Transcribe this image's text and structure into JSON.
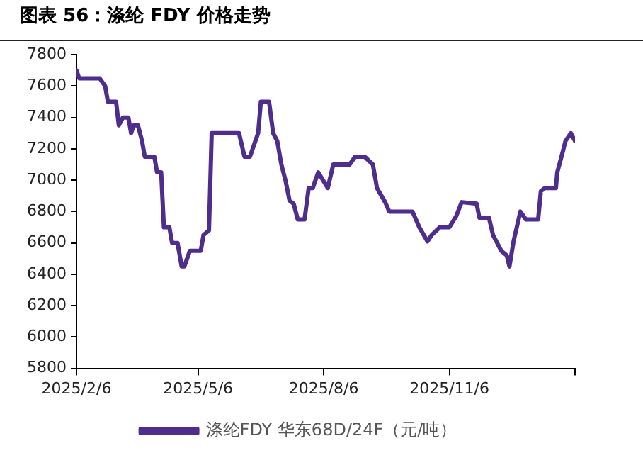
{
  "chart_data": {
    "type": "line",
    "title": "图表 56：涤纶 FDY 价格走势",
    "x": [
      "2025-02-06",
      "2025-02-08",
      "2025-02-23",
      "2025-02-27",
      "2025-03-01",
      "2025-03-07",
      "2025-03-09",
      "2025-03-12",
      "2025-03-16",
      "2025-03-18",
      "2025-03-20",
      "2025-03-23",
      "2025-03-26",
      "2025-03-28",
      "2025-04-04",
      "2025-04-06",
      "2025-04-09",
      "2025-04-11",
      "2025-04-15",
      "2025-04-17",
      "2025-04-21",
      "2025-04-24",
      "2025-04-26",
      "2025-04-30",
      "2025-05-08",
      "2025-05-10",
      "2025-05-14",
      "2025-05-16",
      "2025-06-05",
      "2025-06-09",
      "2025-06-13",
      "2025-06-17",
      "2025-06-19",
      "2025-06-21",
      "2025-06-27",
      "2025-06-30",
      "2025-07-03",
      "2025-07-06",
      "2025-07-09",
      "2025-07-12",
      "2025-07-15",
      "2025-07-18",
      "2025-07-23",
      "2025-07-26",
      "2025-07-29",
      "2025-08-02",
      "2025-08-09",
      "2025-08-13",
      "2025-08-25",
      "2025-08-29",
      "2025-09-05",
      "2025-09-11",
      "2025-09-14",
      "2025-09-20",
      "2025-09-23",
      "2025-10-10",
      "2025-10-15",
      "2025-10-21",
      "2025-10-24",
      "2025-10-30",
      "2025-11-06",
      "2025-11-11",
      "2025-11-15",
      "2025-11-26",
      "2025-11-28",
      "2025-12-05",
      "2025-12-08",
      "2025-12-14",
      "2025-12-18",
      "2025-12-20",
      "2025-12-23",
      "2025-12-28",
      "2026-01-01",
      "2026-01-10",
      "2026-01-12",
      "2026-01-15",
      "2026-01-23",
      "2026-01-24",
      "2026-01-28",
      "2026-01-30",
      "2026-02-03",
      "2026-02-06"
    ],
    "series": [
      {
        "name": "涤纶FDY 华东68D/24F（元/吨）",
        "color": "#4f2d8c",
        "values": [
          7700,
          7650,
          7650,
          7600,
          7500,
          7500,
          7350,
          7400,
          7400,
          7300,
          7350,
          7350,
          7250,
          7150,
          7150,
          7050,
          7050,
          6700,
          6700,
          6600,
          6600,
          6450,
          6450,
          6550,
          6550,
          6650,
          6680,
          7300,
          7300,
          7150,
          7150,
          7250,
          7300,
          7500,
          7500,
          7300,
          7250,
          7100,
          7000,
          6870,
          6850,
          6750,
          6750,
          6950,
          6950,
          7050,
          6950,
          7100,
          7100,
          7150,
          7150,
          7100,
          6950,
          6860,
          6800,
          6800,
          6700,
          6610,
          6650,
          6700,
          6700,
          6770,
          6860,
          6850,
          6760,
          6760,
          6650,
          6550,
          6520,
          6450,
          6610,
          6800,
          6750,
          6750,
          6930,
          6950,
          6950,
          7050,
          7180,
          7250,
          7300,
          7250
        ]
      }
    ],
    "xlim": [
      "2025-02-06",
      "2026-02-06"
    ],
    "xticks": [
      {
        "value": "2025-02-06",
        "label": "2025/2/6"
      },
      {
        "value": "2025-05-06",
        "label": "2025/5/6"
      },
      {
        "value": "2025-08-06",
        "label": "2025/8/6"
      },
      {
        "value": "2025-11-06",
        "label": "2025/11/6"
      },
      {
        "value": "2026-02-06",
        "label": null
      }
    ],
    "ylim": [
      5800,
      7800
    ],
    "yticks": [
      5800,
      6000,
      6200,
      6400,
      6600,
      6800,
      7000,
      7200,
      7400,
      7600,
      7800
    ],
    "grid": false,
    "legend": "bottom",
    "marker": "none",
    "line_style": "solid"
  }
}
